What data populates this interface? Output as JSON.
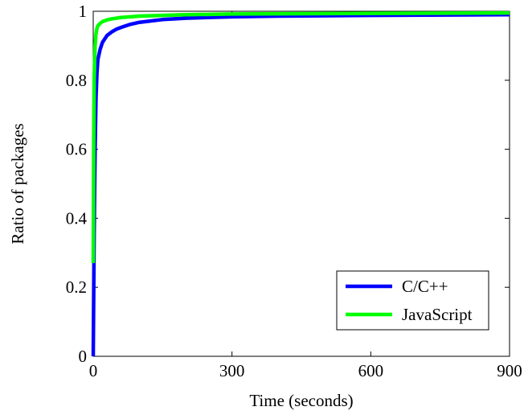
{
  "chart_data": {
    "type": "line",
    "xlabel": "Time (seconds)",
    "ylabel": "Ratio of packages",
    "xlim": [
      0,
      900
    ],
    "ylim": [
      0,
      1
    ],
    "xticks": [
      0,
      300,
      600,
      900
    ],
    "yticks": [
      0,
      0.2,
      0.4,
      0.6,
      0.8,
      1
    ],
    "xtick_labels": [
      "0",
      "300",
      "600",
      "900"
    ],
    "ytick_labels": [
      "0",
      "0.2",
      "0.4",
      "0.6",
      "0.8",
      "1"
    ],
    "grid": false,
    "legend_position": "bottom-right",
    "series": [
      {
        "name": "C/C++",
        "color": "#0000ff",
        "x": [
          0,
          2,
          4,
          6,
          8,
          10,
          15,
          20,
          30,
          40,
          50,
          60,
          80,
          100,
          150,
          200,
          300,
          400,
          600,
          900
        ],
        "y": [
          0.0,
          0.35,
          0.6,
          0.75,
          0.82,
          0.86,
          0.89,
          0.91,
          0.93,
          0.94,
          0.948,
          0.953,
          0.962,
          0.968,
          0.976,
          0.98,
          0.984,
          0.986,
          0.988,
          0.99
        ]
      },
      {
        "name": "JavaScript",
        "color": "#00ff00",
        "x": [
          0,
          1,
          2,
          4,
          6,
          8,
          10,
          15,
          20,
          30,
          40,
          60,
          100,
          200,
          300,
          600,
          900
        ],
        "y": [
          0.27,
          0.6,
          0.8,
          0.9,
          0.935,
          0.95,
          0.958,
          0.965,
          0.97,
          0.975,
          0.978,
          0.982,
          0.986,
          0.99,
          0.992,
          0.994,
          0.995
        ]
      }
    ]
  }
}
